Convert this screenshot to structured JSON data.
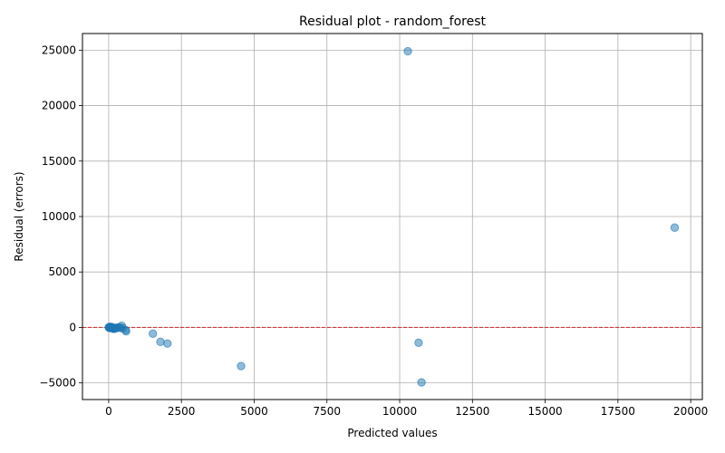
{
  "chart_data": {
    "type": "scatter",
    "title": "Residual plot - random_forest",
    "xlabel": "Predicted values",
    "ylabel": "Residual (errors)",
    "xlim": [
      -900,
      20400
    ],
    "ylim": [
      -6500,
      26500
    ],
    "xticks": [
      0,
      2500,
      5000,
      7500,
      10000,
      12500,
      15000,
      17500,
      20000
    ],
    "xtick_labels": [
      "0",
      "2500",
      "5000",
      "7500",
      "10000",
      "12500",
      "15000",
      "17500",
      "20000"
    ],
    "yticks": [
      -5000,
      0,
      5000,
      10000,
      15000,
      20000,
      25000
    ],
    "ytick_labels": [
      "−5000",
      "0",
      "5000",
      "10000",
      "15000",
      "20000",
      "25000"
    ],
    "grid": true,
    "reference_line": {
      "y": 0,
      "style": "dashed",
      "color": "#d62728"
    },
    "point_color": "#1f77b4",
    "points": [
      {
        "x": 5,
        "y": 20
      },
      {
        "x": 15,
        "y": -30
      },
      {
        "x": 30,
        "y": 40
      },
      {
        "x": 45,
        "y": -50
      },
      {
        "x": 60,
        "y": 60
      },
      {
        "x": 75,
        "y": -20
      },
      {
        "x": 90,
        "y": 10
      },
      {
        "x": 110,
        "y": -60
      },
      {
        "x": 130,
        "y": 30
      },
      {
        "x": 150,
        "y": -90
      },
      {
        "x": 170,
        "y": -120
      },
      {
        "x": 200,
        "y": -100
      },
      {
        "x": 230,
        "y": -80
      },
      {
        "x": 260,
        "y": -40
      },
      {
        "x": 300,
        "y": -30
      },
      {
        "x": 350,
        "y": 20
      },
      {
        "x": 420,
        "y": -50
      },
      {
        "x": 450,
        "y": 150
      },
      {
        "x": 480,
        "y": -60
      },
      {
        "x": 580,
        "y": -230
      },
      {
        "x": 600,
        "y": -350
      },
      {
        "x": 1520,
        "y": -560
      },
      {
        "x": 1780,
        "y": -1300
      },
      {
        "x": 2020,
        "y": -1450
      },
      {
        "x": 4550,
        "y": -3480
      },
      {
        "x": 10280,
        "y": 24900
      },
      {
        "x": 10650,
        "y": -1380
      },
      {
        "x": 10750,
        "y": -4950
      },
      {
        "x": 19450,
        "y": 9000
      }
    ]
  }
}
